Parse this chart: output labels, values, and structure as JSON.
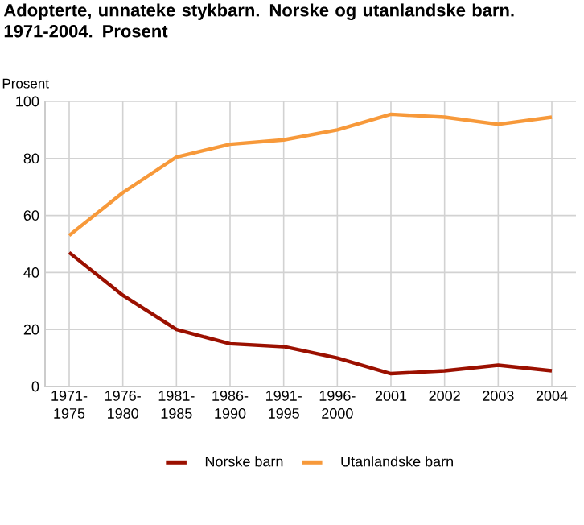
{
  "chart_data": {
    "type": "line",
    "title": "Adopterte, unnateke stykbarn. Norske og utanlandske barn. 1971-2004. Prosent",
    "ylabel": "Prosent",
    "categories": [
      "1971-1975",
      "1976-1980",
      "1981-1985",
      "1986-1990",
      "1991-1995",
      "1996-2000",
      "2001",
      "2002",
      "2003",
      "2004"
    ],
    "series": [
      {
        "name": "Norske barn",
        "color": "#9b1000",
        "values": [
          47,
          32,
          20,
          15,
          14,
          10,
          4.5,
          5.5,
          7.5,
          5.5
        ]
      },
      {
        "name": "Utanlandske barn",
        "color": "#f7993a",
        "values": [
          53,
          68,
          80.5,
          85,
          86.5,
          90,
          95.5,
          94.5,
          92,
          94.5
        ]
      }
    ],
    "ylim": [
      0,
      100
    ],
    "yticks": [
      0,
      20,
      40,
      60,
      80,
      100
    ],
    "grid": true,
    "legend": "bottom",
    "marker": "none",
    "line_style": "solid"
  }
}
